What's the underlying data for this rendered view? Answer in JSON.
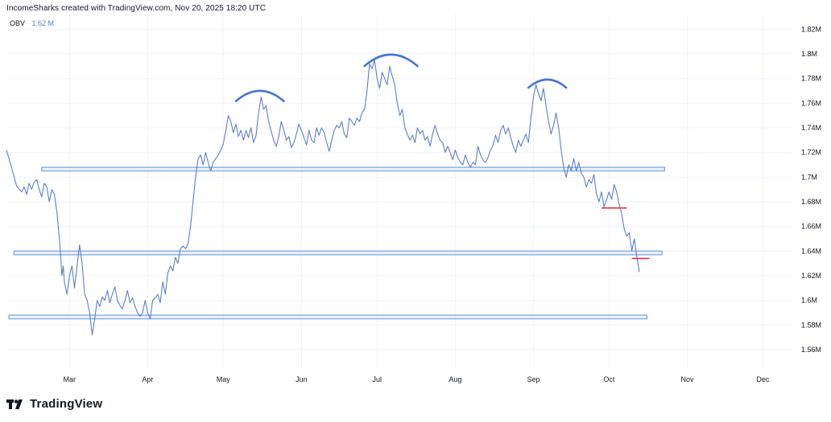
{
  "header": {
    "text": "IncomeSharks created with TradingView.com, Nov 20, 2025 18:20 UTC"
  },
  "legend": {
    "name": "OBV",
    "value": "1.62 M"
  },
  "brand": {
    "text": "TradingView"
  },
  "colors": {
    "line": "#5d7fc8",
    "zone": "#7aa3e0",
    "zone_fill": "#d6e4f7",
    "arc": "#4a74d4",
    "red": "#e0263a",
    "grid": "#f0f3fa"
  },
  "chart_data": {
    "type": "line",
    "title": "",
    "xlabel": "",
    "ylabel": "",
    "ylim": [
      1.545,
      1.832
    ],
    "yticks": [
      1.56,
      1.58,
      1.6,
      1.62,
      1.64,
      1.66,
      1.68,
      1.7,
      1.72,
      1.74,
      1.76,
      1.78,
      1.8,
      1.82
    ],
    "ytick_labels": [
      "1.56M",
      "1.58M",
      "1.6M",
      "1.62M",
      "1.64M",
      "1.66M",
      "1.68M",
      "1.7M",
      "1.72M",
      "1.74M",
      "1.76M",
      "1.78M",
      "1.8M",
      "1.82M"
    ],
    "xticks": [
      {
        "label": "Mar",
        "day": 0
      },
      {
        "label": "Apr",
        "day": 31
      },
      {
        "label": "May",
        "day": 61
      },
      {
        "label": "Jun",
        "day": 92
      },
      {
        "label": "Jul",
        "day": 122
      },
      {
        "label": "Aug",
        "day": 153
      },
      {
        "label": "Sep",
        "day": 184
      },
      {
        "label": "Oct",
        "day": 214
      },
      {
        "label": "Nov",
        "day": 245
      },
      {
        "label": "Dec",
        "day": 275
      }
    ],
    "xlim": [
      -25,
      287
    ],
    "series": [
      {
        "name": "OBV",
        "points": [
          [
            -25,
            1.722
          ],
          [
            -23,
            1.708
          ],
          [
            -21,
            1.693
          ],
          [
            -19,
            1.688
          ],
          [
            -18,
            1.692
          ],
          [
            -17,
            1.686
          ],
          [
            -16,
            1.695
          ],
          [
            -15,
            1.69
          ],
          [
            -14,
            1.696
          ],
          [
            -13,
            1.698
          ],
          [
            -12,
            1.69
          ],
          [
            -11,
            1.684
          ],
          [
            -10,
            1.695
          ],
          [
            -9,
            1.692
          ],
          [
            -8,
            1.68
          ],
          [
            -7,
            1.69
          ],
          [
            -6,
            1.686
          ],
          [
            -5,
            1.672
          ],
          [
            -4,
            1.65
          ],
          [
            -3,
            1.62
          ],
          [
            -2.5,
            1.628
          ],
          [
            -2,
            1.615
          ],
          [
            -1,
            1.605
          ],
          [
            0,
            1.62
          ],
          [
            1,
            1.628
          ],
          [
            2,
            1.61
          ],
          [
            3,
            1.628
          ],
          [
            4,
            1.645
          ],
          [
            5,
            1.63
          ],
          [
            6,
            1.605
          ],
          [
            7,
            1.6
          ],
          [
            8,
            1.59
          ],
          [
            9,
            1.572
          ],
          [
            10,
            1.585
          ],
          [
            11,
            1.6
          ],
          [
            12,
            1.595
          ],
          [
            13,
            1.603
          ],
          [
            14,
            1.6
          ],
          [
            15,
            1.608
          ],
          [
            16,
            1.598
          ],
          [
            17,
            1.605
          ],
          [
            18,
            1.611
          ],
          [
            19,
            1.6
          ],
          [
            20,
            1.596
          ],
          [
            21,
            1.593
          ],
          [
            22,
            1.6
          ],
          [
            23,
            1.608
          ],
          [
            24,
            1.598
          ],
          [
            25,
            1.602
          ],
          [
            26,
            1.595
          ],
          [
            27,
            1.59
          ],
          [
            28,
            1.587
          ],
          [
            29,
            1.59
          ],
          [
            30,
            1.6
          ],
          [
            31,
            1.59
          ],
          [
            32,
            1.585
          ],
          [
            33,
            1.6
          ],
          [
            34,
            1.602
          ],
          [
            35,
            1.605
          ],
          [
            36,
            1.598
          ],
          [
            37,
            1.615
          ],
          [
            38,
            1.605
          ],
          [
            39,
            1.622
          ],
          [
            40,
            1.628
          ],
          [
            41,
            1.624
          ],
          [
            42,
            1.635
          ],
          [
            43,
            1.63
          ],
          [
            44,
            1.642
          ],
          [
            45,
            1.644
          ],
          [
            46,
            1.642
          ],
          [
            47,
            1.646
          ],
          [
            48,
            1.66
          ],
          [
            49,
            1.68
          ],
          [
            50,
            1.7
          ],
          [
            51,
            1.715
          ],
          [
            52,
            1.718
          ],
          [
            53,
            1.71
          ],
          [
            54,
            1.72
          ],
          [
            55,
            1.712
          ],
          [
            56,
            1.705
          ],
          [
            57,
            1.712
          ],
          [
            58,
            1.715
          ],
          [
            59,
            1.718
          ],
          [
            60,
            1.722
          ],
          [
            61,
            1.727
          ],
          [
            62,
            1.738
          ],
          [
            63,
            1.75
          ],
          [
            64,
            1.745
          ],
          [
            65,
            1.736
          ],
          [
            66,
            1.743
          ],
          [
            67,
            1.733
          ],
          [
            68,
            1.738
          ],
          [
            69,
            1.73
          ],
          [
            70,
            1.738
          ],
          [
            71,
            1.732
          ],
          [
            72,
            1.74
          ],
          [
            73,
            1.728
          ],
          [
            74,
            1.734
          ],
          [
            75,
            1.752
          ],
          [
            76,
            1.765
          ],
          [
            77,
            1.755
          ],
          [
            78,
            1.758
          ],
          [
            79,
            1.745
          ],
          [
            80,
            1.737
          ],
          [
            81,
            1.73
          ],
          [
            82,
            1.725
          ],
          [
            83,
            1.733
          ],
          [
            84,
            1.745
          ],
          [
            85,
            1.738
          ],
          [
            86,
            1.73
          ],
          [
            87,
            1.733
          ],
          [
            88,
            1.724
          ],
          [
            89,
            1.728
          ],
          [
            90,
            1.735
          ],
          [
            91,
            1.743
          ],
          [
            92,
            1.738
          ],
          [
            93,
            1.732
          ],
          [
            94,
            1.726
          ],
          [
            95,
            1.738
          ],
          [
            96,
            1.73
          ],
          [
            97,
            1.728
          ],
          [
            98,
            1.74
          ],
          [
            99,
            1.734
          ],
          [
            100,
            1.74
          ],
          [
            101,
            1.736
          ],
          [
            102,
            1.728
          ],
          [
            103,
            1.721
          ],
          [
            104,
            1.73
          ],
          [
            105,
            1.738
          ],
          [
            106,
            1.742
          ],
          [
            107,
            1.74
          ],
          [
            108,
            1.745
          ],
          [
            109,
            1.735
          ],
          [
            110,
            1.732
          ],
          [
            111,
            1.748
          ],
          [
            112,
            1.745
          ],
          [
            113,
            1.742
          ],
          [
            114,
            1.748
          ],
          [
            115,
            1.745
          ],
          [
            116,
            1.752
          ],
          [
            117,
            1.755
          ],
          [
            118,
            1.77
          ],
          [
            119,
            1.792
          ],
          [
            120,
            1.788
          ],
          [
            121,
            1.795
          ],
          [
            122,
            1.78
          ],
          [
            123,
            1.772
          ],
          [
            124,
            1.785
          ],
          [
            125,
            1.78
          ],
          [
            126,
            1.775
          ],
          [
            127,
            1.79
          ],
          [
            128,
            1.782
          ],
          [
            129,
            1.775
          ],
          [
            130,
            1.76
          ],
          [
            131,
            1.75
          ],
          [
            132,
            1.755
          ],
          [
            133,
            1.74
          ],
          [
            134,
            1.735
          ],
          [
            135,
            1.73
          ],
          [
            136,
            1.734
          ],
          [
            137,
            1.728
          ],
          [
            138,
            1.74
          ],
          [
            139,
            1.735
          ],
          [
            140,
            1.738
          ],
          [
            141,
            1.73
          ],
          [
            142,
            1.733
          ],
          [
            143,
            1.725
          ],
          [
            144,
            1.735
          ],
          [
            145,
            1.742
          ],
          [
            146,
            1.735
          ],
          [
            147,
            1.73
          ],
          [
            148,
            1.728
          ],
          [
            149,
            1.72
          ],
          [
            150,
            1.725
          ],
          [
            151,
            1.72
          ],
          [
            152,
            1.714
          ],
          [
            153,
            1.722
          ],
          [
            154,
            1.716
          ],
          [
            155,
            1.712
          ],
          [
            156,
            1.71
          ],
          [
            157,
            1.718
          ],
          [
            158,
            1.712
          ],
          [
            159,
            1.708
          ],
          [
            160,
            1.712
          ],
          [
            161,
            1.71
          ],
          [
            162,
            1.725
          ],
          [
            163,
            1.718
          ],
          [
            164,
            1.714
          ],
          [
            165,
            1.712
          ],
          [
            166,
            1.716
          ],
          [
            167,
            1.722
          ],
          [
            168,
            1.726
          ],
          [
            169,
            1.734
          ],
          [
            170,
            1.728
          ],
          [
            171,
            1.738
          ],
          [
            172,
            1.742
          ],
          [
            173,
            1.735
          ],
          [
            174,
            1.74
          ],
          [
            175,
            1.732
          ],
          [
            176,
            1.725
          ],
          [
            177,
            1.72
          ],
          [
            178,
            1.73
          ],
          [
            179,
            1.725
          ],
          [
            180,
            1.73
          ],
          [
            181,
            1.735
          ],
          [
            182,
            1.728
          ],
          [
            183,
            1.748
          ],
          [
            184,
            1.765
          ],
          [
            185,
            1.775
          ],
          [
            186,
            1.768
          ],
          [
            187,
            1.762
          ],
          [
            188,
            1.772
          ],
          [
            189,
            1.758
          ],
          [
            190,
            1.745
          ],
          [
            191,
            1.735
          ],
          [
            192,
            1.742
          ],
          [
            193,
            1.752
          ],
          [
            194,
            1.74
          ],
          [
            195,
            1.722
          ],
          [
            196,
            1.708
          ],
          [
            197,
            1.7
          ],
          [
            198,
            1.71
          ],
          [
            199,
            1.705
          ],
          [
            200,
            1.715
          ],
          [
            201,
            1.705
          ],
          [
            202,
            1.712
          ],
          [
            203,
            1.703
          ],
          [
            204,
            1.7
          ],
          [
            205,
            1.692
          ],
          [
            206,
            1.698
          ],
          [
            207,
            1.695
          ],
          [
            208,
            1.702
          ],
          [
            209,
            1.686
          ],
          [
            210,
            1.68
          ],
          [
            211,
            1.688
          ],
          [
            212,
            1.676
          ],
          [
            213,
            1.682
          ],
          [
            214,
            1.688
          ],
          [
            215,
            1.682
          ],
          [
            216,
            1.694
          ],
          [
            217,
            1.688
          ],
          [
            218,
            1.678
          ],
          [
            219,
            1.67
          ],
          [
            220,
            1.658
          ],
          [
            221,
            1.652
          ],
          [
            222,
            1.655
          ],
          [
            223,
            1.64
          ],
          [
            224,
            1.65
          ],
          [
            225,
            1.635
          ],
          [
            226,
            1.623
          ]
        ]
      }
    ],
    "zones": [
      {
        "from": -11,
        "to": 236,
        "y_low": 1.705,
        "y_high": 1.708
      },
      {
        "from": -22,
        "to": 235,
        "y_low": 1.637,
        "y_high": 1.64
      },
      {
        "from": -24,
        "to": 229,
        "y_low": 1.585,
        "y_high": 1.588
      }
    ],
    "red_lines": [
      {
        "from": 211,
        "to": 221,
        "y": 1.675
      },
      {
        "from": 223,
        "to": 230,
        "y": 1.634
      }
    ],
    "arcs": [
      {
        "from": 66,
        "to": 85,
        "y": 1.766
      },
      {
        "from": 117,
        "to": 138,
        "y": 1.795
      },
      {
        "from": 182,
        "to": 197,
        "y": 1.776
      }
    ]
  }
}
